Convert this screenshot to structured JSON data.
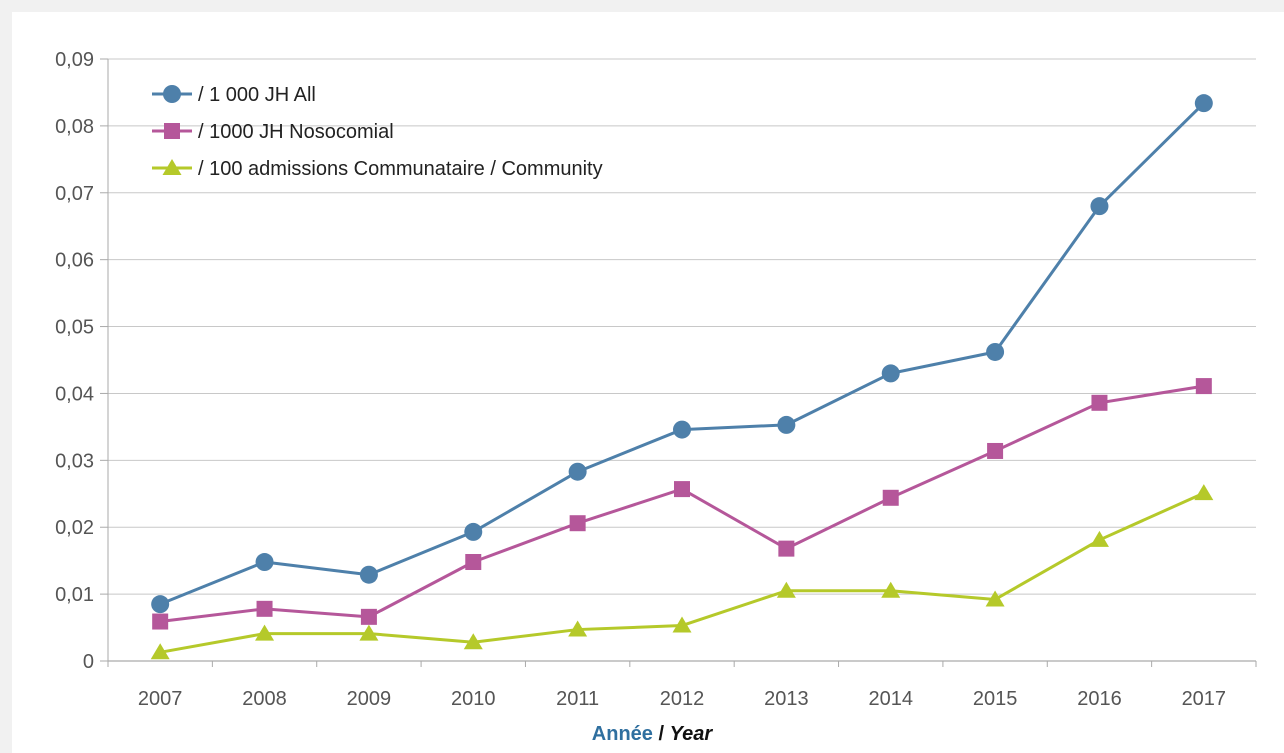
{
  "chart_data": {
    "type": "line",
    "title": "",
    "x": [
      "2007",
      "2008",
      "2009",
      "2010",
      "2011",
      "2012",
      "2013",
      "2014",
      "2015",
      "2016",
      "2017"
    ],
    "y_ticks": [
      "0",
      "0,01",
      "0,02",
      "0,03",
      "0,04",
      "0,05",
      "0,06",
      "0,07",
      "0,08",
      "0,09"
    ],
    "ylim": [
      0,
      0.09
    ],
    "grid": true,
    "legend_position": "top-left",
    "xlabel": {
      "fr": "Année",
      "sep": " / ",
      "en": "Year"
    },
    "ylabel": "",
    "series": [
      {
        "name": "/ 1 000 JH All",
        "color": "#4e80aa",
        "marker": "circle",
        "values": [
          0.0085,
          0.0148,
          0.0129,
          0.0193,
          0.0283,
          0.0346,
          0.0353,
          0.043,
          0.0462,
          0.068,
          0.0834
        ]
      },
      {
        "name": "/ 1000 JH Nosocomial",
        "color": "#b5579a",
        "marker": "square",
        "values": [
          0.0059,
          0.0078,
          0.0066,
          0.0148,
          0.0206,
          0.0257,
          0.0168,
          0.0244,
          0.0314,
          0.0386,
          0.0411
        ]
      },
      {
        "name": "/ 100 admissions Communataire / Community",
        "color": "#b5c92a",
        "marker": "triangle",
        "values": [
          0.0013,
          0.0041,
          0.0041,
          0.0028,
          0.0047,
          0.0053,
          0.0105,
          0.0105,
          0.0092,
          0.0181,
          0.0251
        ]
      }
    ]
  }
}
